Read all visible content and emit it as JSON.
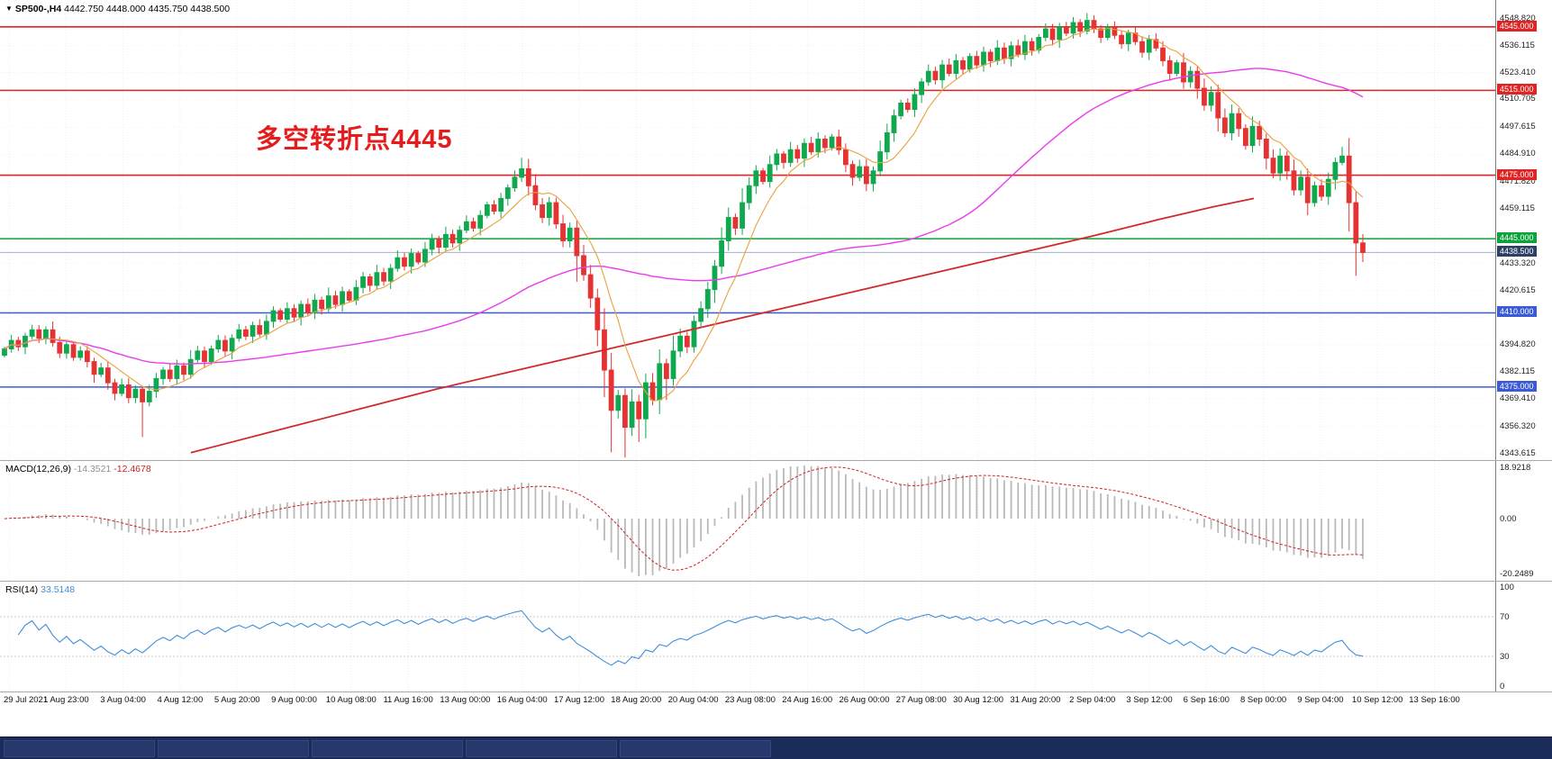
{
  "header": {
    "dropdown_icon": "▼",
    "symbol_title": "SP500-,H4",
    "ohlc_text": "4442.750 4448.000 4435.750 4438.500"
  },
  "annotation": {
    "text": "多空转折点4445",
    "color": "#e51c1c"
  },
  "taskbar": {
    "button_count": 5,
    "color": "#1c2c5a"
  },
  "chart_data": {
    "type": "candlestick",
    "title": "SP500-,H4",
    "symbol": "SP500-",
    "timeframe": "H4",
    "price_range": [
      4341.8,
      4556.8
    ],
    "price_axis_ticks": [
      "4548.820",
      "4536.115",
      "4523.410",
      "4510.705",
      "4497.615",
      "4484.910",
      "4471.820",
      "4459.115",
      "4446.410",
      "4433.320",
      "4420.615",
      "4407.910",
      "4394.820",
      "4382.115",
      "4369.410",
      "4356.320",
      "4343.615"
    ],
    "time_axis_ticks": [
      "29 Jul 2021",
      "1 Aug 23:00",
      "3 Aug 04:00",
      "4 Aug 12:00",
      "5 Aug 20:00",
      "9 Aug 00:00",
      "10 Aug 08:00",
      "11 Aug 16:00",
      "13 Aug 00:00",
      "16 Aug 04:00",
      "17 Aug 12:00",
      "18 Aug 20:00",
      "20 Aug 04:00",
      "23 Aug 08:00",
      "24 Aug 16:00",
      "26 Aug 00:00",
      "27 Aug 08:00",
      "30 Aug 12:00",
      "31 Aug 20:00",
      "2 Sep 04:00",
      "3 Sep 12:00",
      "6 Sep 16:00",
      "8 Sep 00:00",
      "9 Sep 04:00",
      "10 Sep 12:00",
      "13 Sep 16:00"
    ],
    "hlines": [
      {
        "price": 4545,
        "label": "4545.000",
        "color": "#e02424"
      },
      {
        "price": 4515,
        "label": "4515.000",
        "color": "#e02424"
      },
      {
        "price": 4475,
        "label": "4475.000",
        "color": "#e02424"
      },
      {
        "price": 4445,
        "label": "4445.000",
        "color": "#0da33c"
      },
      {
        "price": 4410,
        "label": "4410.000",
        "color": "#3b5bd6"
      },
      {
        "price": 4375,
        "label": "4375.000",
        "color": "#3b5bd6"
      }
    ],
    "current_price": {
      "price": 4438.5,
      "label": "4438.500",
      "line_color": "#9fb1c9",
      "badge_color": "#2b4067"
    },
    "up_color": "#0fa84e",
    "down_color": "#e53232",
    "candles_close": [
      4393,
      4397,
      4394,
      4399,
      4402,
      4398,
      4402,
      4396,
      4391,
      4395,
      4389,
      4392,
      4387,
      4381,
      4384,
      4377,
      4372,
      4376,
      4370,
      4374,
      4368,
      4373,
      4379,
      4383,
      4379,
      4385,
      4381,
      4388,
      4392,
      4387,
      4393,
      4397,
      4392,
      4398,
      4402,
      4399,
      4404,
      4400,
      4406,
      4411,
      4407,
      4412,
      4408,
      4414,
      4410,
      4416,
      4412,
      4418,
      4414,
      4420,
      4416,
      4422,
      4427,
      4423,
      4429,
      4425,
      4431,
      4436,
      4432,
      4438,
      4434,
      4440,
      4445,
      4441,
      4447,
      4443,
      4449,
      4453,
      4450,
      4456,
      4461,
      4458,
      4464,
      4469,
      4474,
      4478,
      4470,
      4461,
      4455,
      4462,
      4452,
      4444,
      4450,
      4437,
      4428,
      4417,
      4402,
      4383,
      4364,
      4371,
      4356,
      4368,
      4360,
      4377,
      4369,
      4386,
      4379,
      4392,
      4399,
      4394,
      4406,
      4412,
      4421,
      4432,
      4444,
      4455,
      4450,
      4462,
      4470,
      4477,
      4472,
      4480,
      4485,
      4481,
      4487,
      4483,
      4490,
      4486,
      4492,
      4488,
      4493,
      4487,
      4480,
      4474,
      4479,
      4471,
      4477,
      4486,
      4495,
      4503,
      4509,
      4506,
      4513,
      4519,
      4524,
      4520,
      4527,
      4523,
      4529,
      4525,
      4531,
      4527,
      4533,
      4529,
      4535,
      4530,
      4536,
      4532,
      4538,
      4534,
      4540,
      4544,
      4539,
      4545,
      4542,
      4547,
      4543,
      4548,
      4544,
      4540,
      4545,
      4541,
      4537,
      4542,
      4538,
      4533,
      4539,
      4535,
      4529,
      4523,
      4528,
      4519,
      4524,
      4516,
      4508,
      4514,
      4502,
      4495,
      4504,
      4497,
      4489,
      4498,
      4492,
      4483,
      4476,
      4484,
      4477,
      4468,
      4474,
      4462,
      4470,
      4465,
      4473,
      4481,
      4484,
      4462,
      4443,
      4438.5
    ],
    "extra_wicks": {
      "20": [
        0,
        15
      ],
      "75": [
        3,
        0
      ],
      "76": [
        2,
        0
      ],
      "83": [
        0,
        5
      ],
      "87": [
        0,
        8
      ],
      "88": [
        0,
        13
      ],
      "90": [
        0,
        11
      ],
      "92": [
        0,
        7
      ],
      "96": [
        0,
        6
      ],
      "194": [
        2,
        0
      ],
      "195": [
        0,
        5
      ],
      "196": [
        0,
        6
      ],
      "197": [
        1,
        3
      ]
    },
    "ma_fast": {
      "period": 8,
      "color": "#e8a23c"
    },
    "ma_mid": {
      "period": 55,
      "color": "#ea3cea"
    },
    "ma_slow": {
      "color": "#d22a2a",
      "points": [
        [
          0.14,
          4344
        ],
        [
          0.2,
          4354
        ],
        [
          0.26,
          4364
        ],
        [
          0.32,
          4374
        ],
        [
          0.38,
          4383
        ],
        [
          0.44,
          4392
        ],
        [
          0.5,
          4401
        ],
        [
          0.56,
          4410
        ],
        [
          0.62,
          4419
        ],
        [
          0.68,
          4428
        ],
        [
          0.74,
          4437
        ],
        [
          0.8,
          4446
        ],
        [
          0.85,
          4454
        ],
        [
          0.89,
          4460
        ],
        [
          0.92,
          4464
        ]
      ]
    },
    "macd": {
      "label": "MACD(12,26,9)",
      "value": "-14.3521",
      "signal_value": "-12.4678",
      "fast": 12,
      "slow": 26,
      "signal": 9,
      "axis_labels": [
        "18.9218",
        "0.00",
        "-20.2489"
      ],
      "hist_color": "#b9b9b9",
      "signal_color": "#d02020"
    },
    "rsi": {
      "label": "RSI(14)",
      "period": 14,
      "value": "33.5148",
      "axis_labels": [
        "100",
        "70",
        "30",
        "0"
      ],
      "levels": [
        70,
        30
      ],
      "line_color": "#3f8fdc"
    }
  }
}
